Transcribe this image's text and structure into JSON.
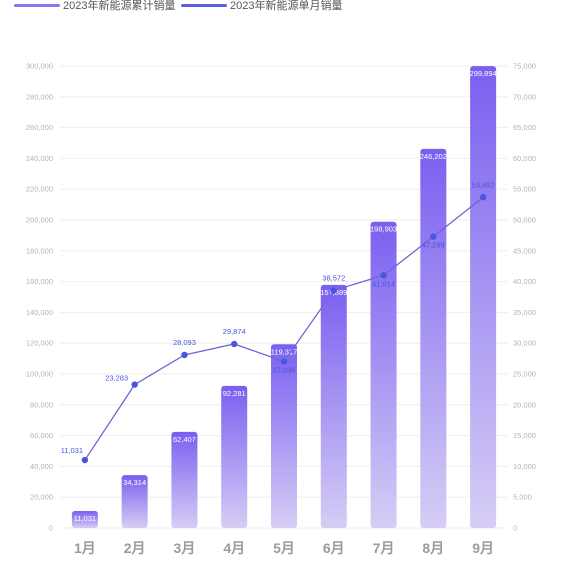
{
  "chart_data": {
    "type": "bar",
    "categories": [
      "1月",
      "2月",
      "3月",
      "4月",
      "5月",
      "6月",
      "7月",
      "8月",
      "9月"
    ],
    "series": [
      {
        "name": "2023年新能源累计销量",
        "type": "bar",
        "axis": "left",
        "values": [
          11031,
          34314,
          62407,
          92281,
          119317,
          157889,
          198903,
          246202,
          299894
        ],
        "labels": [
          "11,031",
          "34,314",
          "62,407",
          "92,281",
          "119,317",
          "157,889",
          "198,903",
          "246,202",
          "299,894"
        ]
      },
      {
        "name": "2023年新能源单月销量",
        "type": "line",
        "axis": "right",
        "values": [
          11031,
          23283,
          28093,
          29874,
          27036,
          38572,
          41014,
          47299,
          53692
        ],
        "labels": [
          "11,031",
          "23,283",
          "28,093",
          "29,874",
          "27,036",
          "38,572",
          "41,014",
          "47,299",
          "53,692"
        ]
      }
    ],
    "y_left": {
      "ylim": [
        0,
        300000
      ],
      "ticks": [
        "0",
        "20,000",
        "40,000",
        "60,000",
        "80,000",
        "100,000",
        "120,000",
        "140,000",
        "160,000",
        "180,000",
        "200,000",
        "220,000",
        "240,000",
        "260,000",
        "280,000",
        "300,000"
      ]
    },
    "y_right": {
      "ylim": [
        0,
        75000
      ],
      "ticks": [
        "0",
        "5,000",
        "10,000",
        "15,000",
        "20,000",
        "25,000",
        "30,000",
        "35,000",
        "40,000",
        "45,000",
        "50,000",
        "55,000",
        "60,000",
        "65,000",
        "70,000",
        "75,000"
      ]
    },
    "grid": true,
    "legend_position": "top-left",
    "colors": {
      "bar_top": "#7a5ff0",
      "bar_bottom": "#d6cdf5",
      "line": "#6f66d8",
      "point": "#4a55e0",
      "line_label": "#4a55d6",
      "legend_bar": "#8b73f0",
      "legend_line": "#5b5fe6"
    }
  }
}
